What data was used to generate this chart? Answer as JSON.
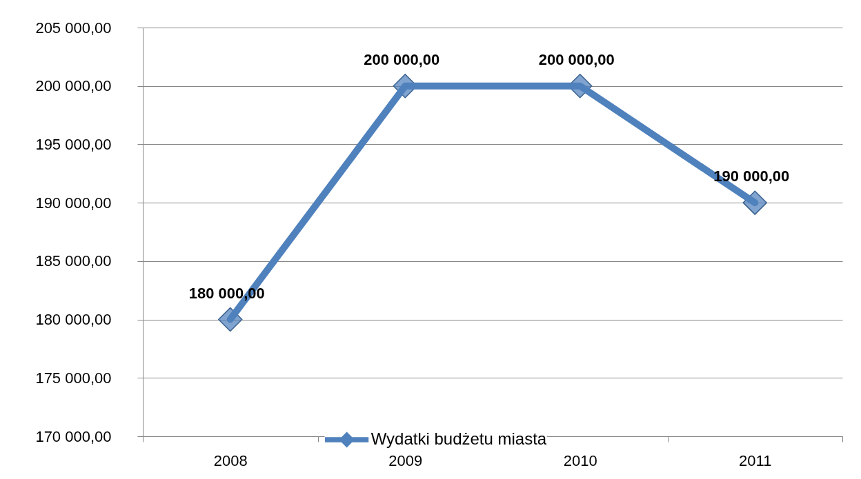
{
  "chart_data": {
    "type": "line",
    "categories": [
      "2008",
      "2009",
      "2010",
      "2011"
    ],
    "series": [
      {
        "name": "Wydatki budżetu miasta",
        "color": "#4f81bd",
        "values": [
          180000,
          200000,
          200000,
          190000
        ],
        "value_labels": [
          "180 000,00",
          "200 000,00",
          "200 000,00",
          "190 000,00"
        ]
      }
    ],
    "ylim": [
      170000,
      205000
    ],
    "yticks": [
      {
        "value": 170000,
        "label": "170 000,00"
      },
      {
        "value": 175000,
        "label": "175 000,00"
      },
      {
        "value": 180000,
        "label": "180 000,00"
      },
      {
        "value": 185000,
        "label": "185 000,00"
      },
      {
        "value": 190000,
        "label": "190 000,00"
      },
      {
        "value": 195000,
        "label": "195 000,00"
      },
      {
        "value": 200000,
        "label": "200 000,00"
      },
      {
        "value": 205000,
        "label": "205 000,00"
      }
    ],
    "grid": "y",
    "legend": "bottom",
    "marker": "diamond",
    "line_style": "solid"
  }
}
